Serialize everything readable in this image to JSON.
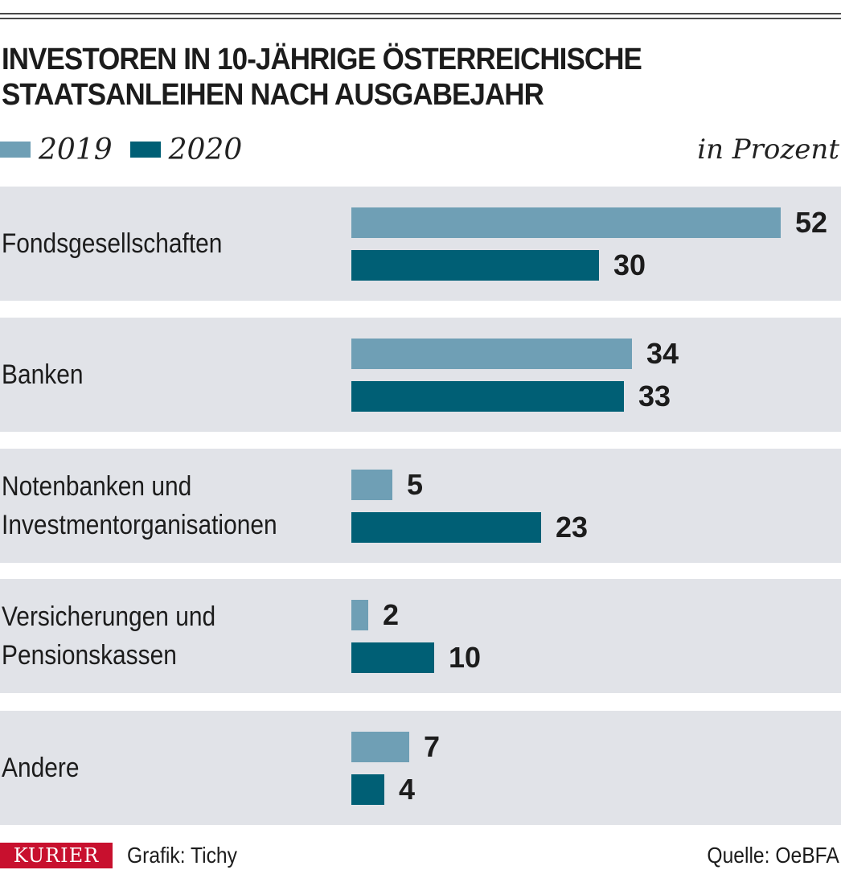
{
  "chart_data": {
    "type": "bar",
    "orientation": "horizontal",
    "title_lines": [
      "INVESTOREN IN 10-JÄHRIGE ÖSTERREICHISCHE",
      "STAATSANLEIHEN NACH AUSGABEJAHR"
    ],
    "unit_label": "in Prozent",
    "categories": [
      {
        "lines": [
          "Fondsgesellschaften"
        ]
      },
      {
        "lines": [
          "Banken"
        ]
      },
      {
        "lines": [
          "Notenbanken und",
          "Investmentorganisationen"
        ]
      },
      {
        "lines": [
          "Versicherungen und",
          "Pensionskassen"
        ]
      },
      {
        "lines": [
          "Andere"
        ]
      }
    ],
    "series": [
      {
        "name": "2019",
        "color": "#6f9fb5",
        "values": [
          52,
          34,
          5,
          2,
          7
        ]
      },
      {
        "name": "2020",
        "color": "#005f75",
        "values": [
          30,
          33,
          23,
          10,
          4
        ]
      }
    ],
    "xlim": [
      0,
      52
    ]
  },
  "footer": {
    "brand": "KURIER",
    "credit": "Grafik: Tichy",
    "source": "Quelle: OeBFA"
  },
  "colors": {
    "band": "#e1e3e8",
    "brand": "#c8102e"
  }
}
